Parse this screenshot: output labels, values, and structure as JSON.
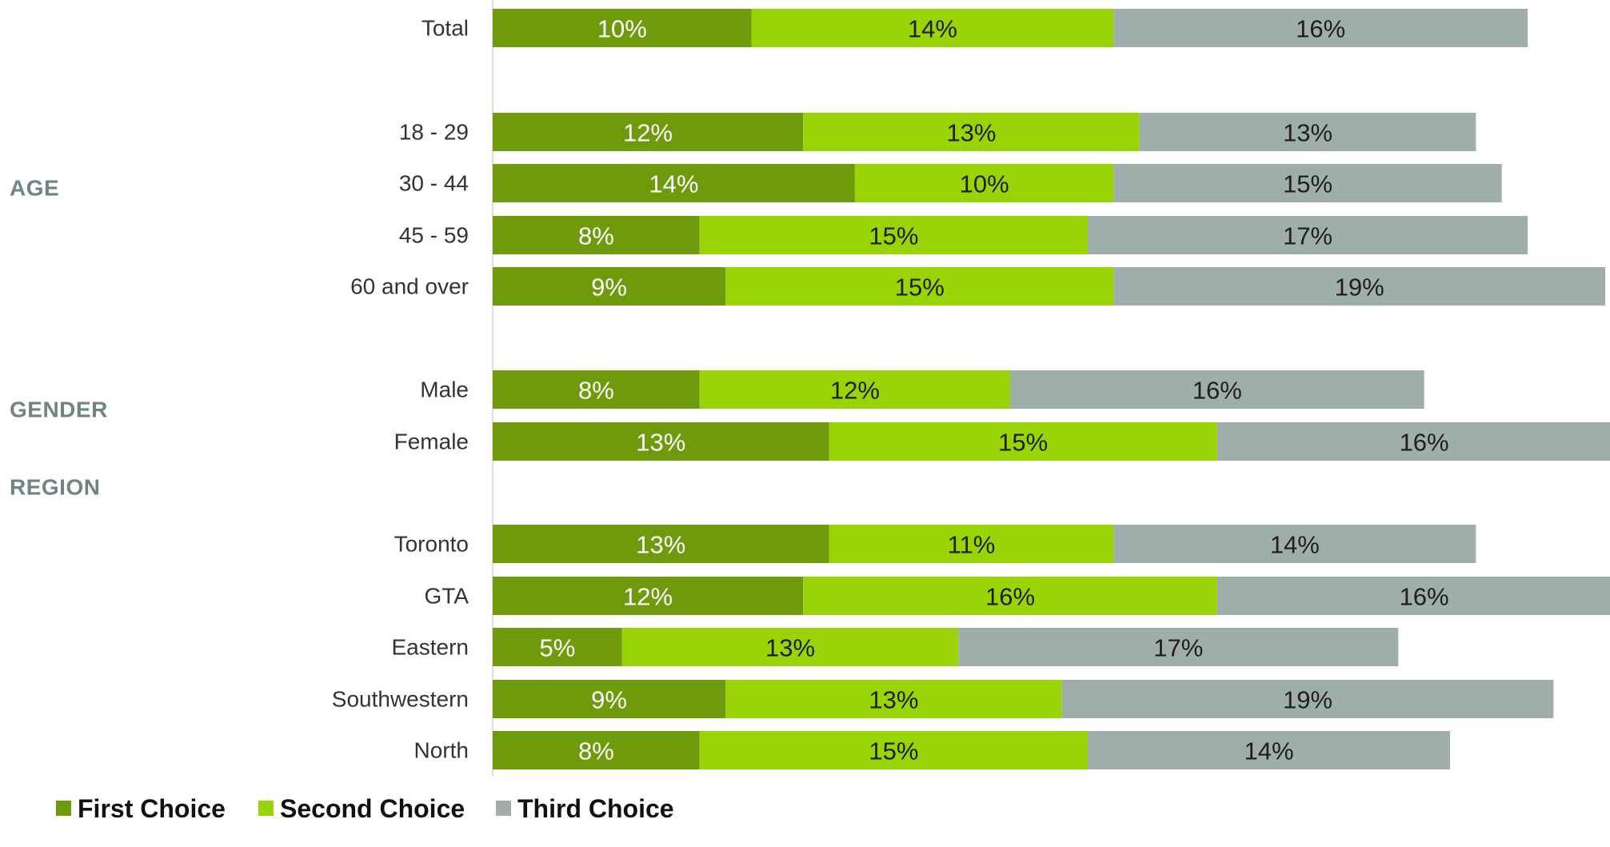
{
  "chart_data": {
    "type": "bar",
    "orientation": "horizontal",
    "stacked": true,
    "title": "",
    "xlabel": "",
    "ylabel": "",
    "grid": false,
    "legend_placement": "bottom-left",
    "groups": [
      {
        "label": "AGE",
        "members": [
          "18 - 29",
          "30 - 44",
          "45 - 59",
          "60 and over"
        ]
      },
      {
        "label": "GENDER",
        "members": [
          "Male",
          "Female"
        ]
      },
      {
        "label": "REGION",
        "members": [
          "Toronto",
          "GTA",
          "Eastern",
          "Southwestern",
          "North"
        ]
      }
    ],
    "categories": [
      "Total",
      "18 - 29",
      "30 - 44",
      "45 - 59",
      "60 and over",
      "Male",
      "Female",
      "Toronto",
      "GTA",
      "Eastern",
      "Southwestern",
      "North"
    ],
    "series": [
      {
        "name": "First Choice",
        "color": "#6f9a0c",
        "label_color": "#ffffff",
        "values": [
          10,
          12,
          14,
          8,
          9,
          8,
          13,
          13,
          12,
          5,
          9,
          8
        ],
        "labels": [
          "10%",
          "12%",
          "14%",
          "8%",
          "9%",
          "8%",
          "13%",
          "13%",
          "12%",
          "5%",
          "9%",
          "8%"
        ]
      },
      {
        "name": "Second Choice",
        "color": "#98d406",
        "label_color": "#1f1f1f",
        "values": [
          14,
          13,
          10,
          15,
          15,
          12,
          15,
          11,
          16,
          13,
          13,
          15
        ],
        "labels": [
          "14%",
          "13%",
          "10%",
          "15%",
          "15%",
          "12%",
          "15%",
          "11%",
          "16%",
          "13%",
          "13%",
          "15%"
        ]
      },
      {
        "name": "Third Choice",
        "color": "#9fadab",
        "label_color": "#1f1f1f",
        "values": [
          16,
          13,
          15,
          17,
          19,
          16,
          16,
          14,
          16,
          17,
          19,
          14
        ],
        "labels": [
          "16%",
          "13%",
          "15%",
          "17%",
          "19%",
          "16%",
          "16%",
          "14%",
          "16%",
          "17%",
          "19%",
          "14%"
        ]
      }
    ]
  }
}
